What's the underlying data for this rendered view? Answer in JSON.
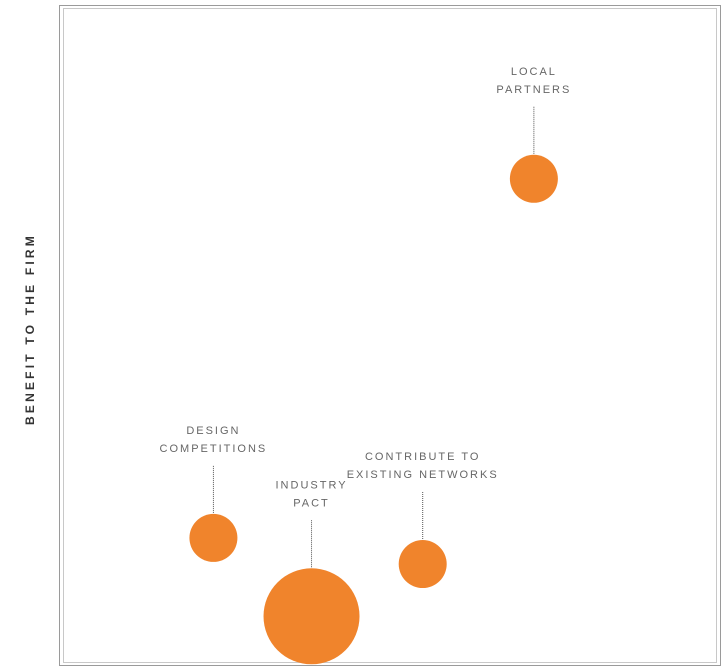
{
  "chart_data": {
    "type": "bubble",
    "title": "",
    "xlabel": "",
    "ylabel": "BENEFIT TO THE FIRM",
    "grid": false,
    "legend": "none",
    "bubble_color": "#F0842C",
    "frame_color": "#9a9a9a",
    "points": [
      {
        "label": [
          "LOCAL",
          "PARTNERS"
        ],
        "x": 0.72,
        "y": 0.74,
        "size": 24
      },
      {
        "label": [
          "INDUSTRY",
          "PACT"
        ],
        "x": 0.38,
        "y": 0.07,
        "size": 48
      },
      {
        "label": [
          "DESIGN",
          "COMPETITIONS"
        ],
        "x": 0.23,
        "y": 0.19,
        "size": 24
      },
      {
        "label": [
          "CONTRIBUTE TO",
          "EXISTING NETWORKS"
        ],
        "x": 0.55,
        "y": 0.15,
        "size": 24
      }
    ]
  }
}
